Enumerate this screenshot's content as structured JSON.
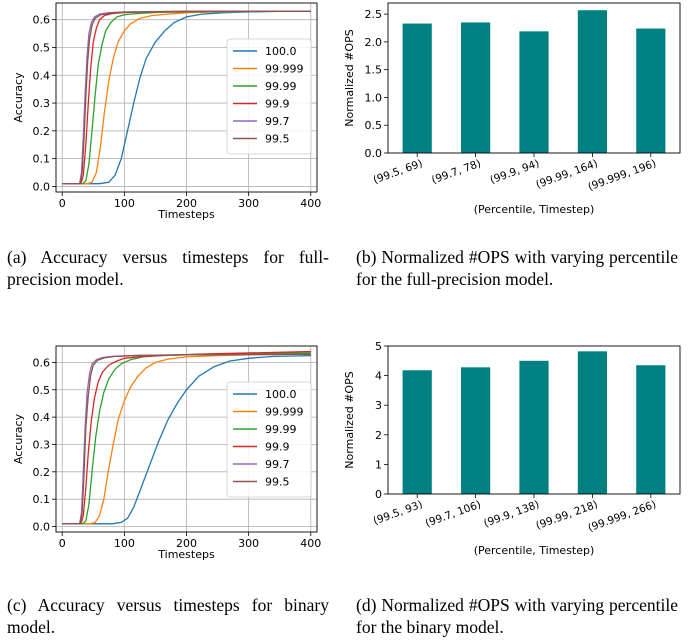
{
  "chart_data": [
    {
      "id": "a",
      "type": "line",
      "xlabel": "Timesteps",
      "ylabel": "Accuracy",
      "xlim": [
        -10,
        410
      ],
      "ylim": [
        -0.02,
        0.66
      ],
      "xticks": [
        0,
        100,
        200,
        300,
        400
      ],
      "yticks": [
        0.0,
        0.1,
        0.2,
        0.3,
        0.4,
        0.5,
        0.6
      ],
      "ytick_labels": [
        "0.0",
        "0.1",
        "0.2",
        "0.3",
        "0.4",
        "0.5",
        "0.6"
      ],
      "grid": true,
      "legend_position": "center-right",
      "series": [
        {
          "name": "100.0",
          "color": "#1f77b4",
          "points": [
            [
              0,
              0.01
            ],
            [
              60,
              0.01
            ],
            [
              75,
              0.015
            ],
            [
              85,
              0.04
            ],
            [
              95,
              0.1
            ],
            [
              105,
              0.2
            ],
            [
              115,
              0.3
            ],
            [
              125,
              0.39
            ],
            [
              135,
              0.46
            ],
            [
              150,
              0.52
            ],
            [
              165,
              0.56
            ],
            [
              180,
              0.59
            ],
            [
              200,
              0.61
            ],
            [
              225,
              0.62
            ],
            [
              260,
              0.625
            ],
            [
              300,
              0.628
            ],
            [
              350,
              0.63
            ],
            [
              400,
              0.63
            ]
          ]
        },
        {
          "name": "99.999",
          "color": "#ff7f0e",
          "points": [
            [
              0,
              0.01
            ],
            [
              40,
              0.01
            ],
            [
              48,
              0.015
            ],
            [
              55,
              0.05
            ],
            [
              62,
              0.15
            ],
            [
              68,
              0.27
            ],
            [
              75,
              0.38
            ],
            [
              82,
              0.46
            ],
            [
              90,
              0.52
            ],
            [
              100,
              0.56
            ],
            [
              110,
              0.585
            ],
            [
              125,
              0.605
            ],
            [
              145,
              0.615
            ],
            [
              170,
              0.62
            ],
            [
              200,
              0.625
            ],
            [
              250,
              0.628
            ],
            [
              300,
              0.63
            ],
            [
              400,
              0.63
            ]
          ]
        },
        {
          "name": "99.99",
          "color": "#2ca02c",
          "points": [
            [
              0,
              0.01
            ],
            [
              33,
              0.01
            ],
            [
              38,
              0.02
            ],
            [
              43,
              0.08
            ],
            [
              48,
              0.2
            ],
            [
              53,
              0.33
            ],
            [
              58,
              0.44
            ],
            [
              64,
              0.51
            ],
            [
              70,
              0.56
            ],
            [
              78,
              0.59
            ],
            [
              88,
              0.61
            ],
            [
              100,
              0.618
            ],
            [
              120,
              0.622
            ],
            [
              150,
              0.626
            ],
            [
              200,
              0.628
            ],
            [
              300,
              0.63
            ],
            [
              400,
              0.63
            ]
          ]
        },
        {
          "name": "99.9",
          "color": "#d62728",
          "points": [
            [
              0,
              0.01
            ],
            [
              30,
              0.01
            ],
            [
              34,
              0.04
            ],
            [
              38,
              0.15
            ],
            [
              42,
              0.3
            ],
            [
              46,
              0.43
            ],
            [
              50,
              0.52
            ],
            [
              55,
              0.57
            ],
            [
              60,
              0.6
            ],
            [
              68,
              0.615
            ],
            [
              80,
              0.622
            ],
            [
              100,
              0.626
            ],
            [
              150,
              0.628
            ],
            [
              250,
              0.63
            ],
            [
              400,
              0.63
            ]
          ]
        },
        {
          "name": "99.7",
          "color": "#9467bd",
          "points": [
            [
              0,
              0.01
            ],
            [
              28,
              0.01
            ],
            [
              31,
              0.05
            ],
            [
              34,
              0.18
            ],
            [
              37,
              0.34
            ],
            [
              40,
              0.47
            ],
            [
              43,
              0.55
            ],
            [
              47,
              0.59
            ],
            [
              52,
              0.61
            ],
            [
              60,
              0.62
            ],
            [
              75,
              0.625
            ],
            [
              100,
              0.628
            ],
            [
              200,
              0.63
            ],
            [
              400,
              0.63
            ]
          ]
        },
        {
          "name": "99.5",
          "color": "#8c564b",
          "points": [
            [
              0,
              0.01
            ],
            [
              29,
              0.01
            ],
            [
              32,
              0.05
            ],
            [
              35,
              0.17
            ],
            [
              38,
              0.32
            ],
            [
              41,
              0.45
            ],
            [
              44,
              0.53
            ],
            [
              48,
              0.58
            ],
            [
              53,
              0.605
            ],
            [
              62,
              0.618
            ],
            [
              80,
              0.624
            ],
            [
              100,
              0.627
            ],
            [
              200,
              0.63
            ],
            [
              400,
              0.63
            ]
          ]
        }
      ]
    },
    {
      "id": "b",
      "type": "bar",
      "xlabel": "(Percentile, Timestep)",
      "ylabel": "Normalized #OPS",
      "categories": [
        "(99.5, 69)",
        "(99.7, 78)",
        "(99.9, 94)",
        "(99.99, 164)",
        "(99.999, 196)"
      ],
      "values": [
        2.33,
        2.35,
        2.19,
        2.57,
        2.24
      ],
      "ylim": [
        0,
        2.7
      ],
      "yticks": [
        0.0,
        0.5,
        1.0,
        1.5,
        2.0,
        2.5
      ],
      "ytick_labels": [
        "0.0",
        "0.5",
        "1.0",
        "1.5",
        "2.0",
        "2.5"
      ],
      "bar_color": "#008080",
      "grid": false
    },
    {
      "id": "c",
      "type": "line",
      "xlabel": "Timesteps",
      "ylabel": "Accuracy",
      "xlim": [
        -10,
        410
      ],
      "ylim": [
        -0.02,
        0.66
      ],
      "xticks": [
        0,
        100,
        200,
        300,
        400
      ],
      "yticks": [
        0.0,
        0.1,
        0.2,
        0.3,
        0.4,
        0.5,
        0.6
      ],
      "ytick_labels": [
        "0.0",
        "0.1",
        "0.2",
        "0.3",
        "0.4",
        "0.5",
        "0.6"
      ],
      "grid": true,
      "legend_position": "center-right",
      "series": [
        {
          "name": "100.0",
          "color": "#1f77b4",
          "points": [
            [
              0,
              0.01
            ],
            [
              80,
              0.01
            ],
            [
              95,
              0.015
            ],
            [
              105,
              0.03
            ],
            [
              115,
              0.07
            ],
            [
              125,
              0.13
            ],
            [
              140,
              0.22
            ],
            [
              155,
              0.31
            ],
            [
              170,
              0.39
            ],
            [
              185,
              0.45
            ],
            [
              200,
              0.5
            ],
            [
              220,
              0.55
            ],
            [
              245,
              0.585
            ],
            [
              270,
              0.605
            ],
            [
              300,
              0.615
            ],
            [
              340,
              0.622
            ],
            [
              400,
              0.625
            ]
          ]
        },
        {
          "name": "99.999",
          "color": "#ff7f0e",
          "points": [
            [
              0,
              0.01
            ],
            [
              45,
              0.01
            ],
            [
              53,
              0.015
            ],
            [
              60,
              0.04
            ],
            [
              67,
              0.1
            ],
            [
              74,
              0.2
            ],
            [
              82,
              0.3
            ],
            [
              90,
              0.39
            ],
            [
              100,
              0.46
            ],
            [
              110,
              0.51
            ],
            [
              122,
              0.55
            ],
            [
              135,
              0.58
            ],
            [
              150,
              0.6
            ],
            [
              170,
              0.612
            ],
            [
              200,
              0.62
            ],
            [
              250,
              0.625
            ],
            [
              300,
              0.628
            ],
            [
              400,
              0.63
            ]
          ]
        },
        {
          "name": "99.99",
          "color": "#2ca02c",
          "points": [
            [
              0,
              0.01
            ],
            [
              33,
              0.01
            ],
            [
              38,
              0.02
            ],
            [
              43,
              0.08
            ],
            [
              48,
              0.2
            ],
            [
              54,
              0.33
            ],
            [
              60,
              0.42
            ],
            [
              67,
              0.49
            ],
            [
              75,
              0.54
            ],
            [
              85,
              0.575
            ],
            [
              95,
              0.595
            ],
            [
              110,
              0.61
            ],
            [
              130,
              0.62
            ],
            [
              160,
              0.625
            ],
            [
              220,
              0.63
            ],
            [
              300,
              0.632
            ],
            [
              400,
              0.635
            ]
          ]
        },
        {
          "name": "99.9",
          "color": "#d62728",
          "points": [
            [
              0,
              0.01
            ],
            [
              30,
              0.01
            ],
            [
              34,
              0.04
            ],
            [
              38,
              0.14
            ],
            [
              42,
              0.27
            ],
            [
              47,
              0.39
            ],
            [
              52,
              0.47
            ],
            [
              58,
              0.53
            ],
            [
              65,
              0.565
            ],
            [
              75,
              0.59
            ],
            [
              88,
              0.605
            ],
            [
              100,
              0.615
            ],
            [
              130,
              0.622
            ],
            [
              180,
              0.627
            ],
            [
              250,
              0.632
            ],
            [
              400,
              0.64
            ]
          ]
        },
        {
          "name": "99.7",
          "color": "#9467bd",
          "points": [
            [
              0,
              0.01
            ],
            [
              28,
              0.01
            ],
            [
              31,
              0.05
            ],
            [
              34,
              0.2
            ],
            [
              37,
              0.37
            ],
            [
              40,
              0.49
            ],
            [
              44,
              0.56
            ],
            [
              48,
              0.595
            ],
            [
              55,
              0.61
            ],
            [
              65,
              0.618
            ],
            [
              80,
              0.622
            ],
            [
              120,
              0.626
            ],
            [
              200,
              0.628
            ],
            [
              400,
              0.63
            ]
          ]
        },
        {
          "name": "99.5",
          "color": "#8c564b",
          "points": [
            [
              0,
              0.01
            ],
            [
              29,
              0.01
            ],
            [
              32,
              0.05
            ],
            [
              35,
              0.19
            ],
            [
              38,
              0.36
            ],
            [
              42,
              0.48
            ],
            [
              46,
              0.555
            ],
            [
              50,
              0.59
            ],
            [
              57,
              0.608
            ],
            [
              68,
              0.617
            ],
            [
              85,
              0.622
            ],
            [
              120,
              0.625
            ],
            [
              200,
              0.628
            ],
            [
              400,
              0.63
            ]
          ]
        }
      ]
    },
    {
      "id": "d",
      "type": "bar",
      "xlabel": "(Percentile, Timestep)",
      "ylabel": "Normalized #OPS",
      "categories": [
        "(99.5, 93)",
        "(99.7, 106)",
        "(99.9, 138)",
        "(99.99, 218)",
        "(99.999, 266)"
      ],
      "values": [
        4.18,
        4.28,
        4.5,
        4.82,
        4.35
      ],
      "ylim": [
        0,
        5.0
      ],
      "yticks": [
        0,
        1,
        2,
        3,
        4,
        5
      ],
      "ytick_labels": [
        "0",
        "1",
        "2",
        "3",
        "4",
        "5"
      ],
      "bar_color": "#008080",
      "grid": false
    }
  ],
  "captions": {
    "a": "(a) Accuracy versus timesteps for full-precision model.",
    "b": "(b) Normalized #OPS with varying percentile for the full-precision model.",
    "c": "(c) Accuracy versus timesteps for binary model.",
    "d": "(d) Normalized #OPS with varying percentile for the binary model."
  }
}
